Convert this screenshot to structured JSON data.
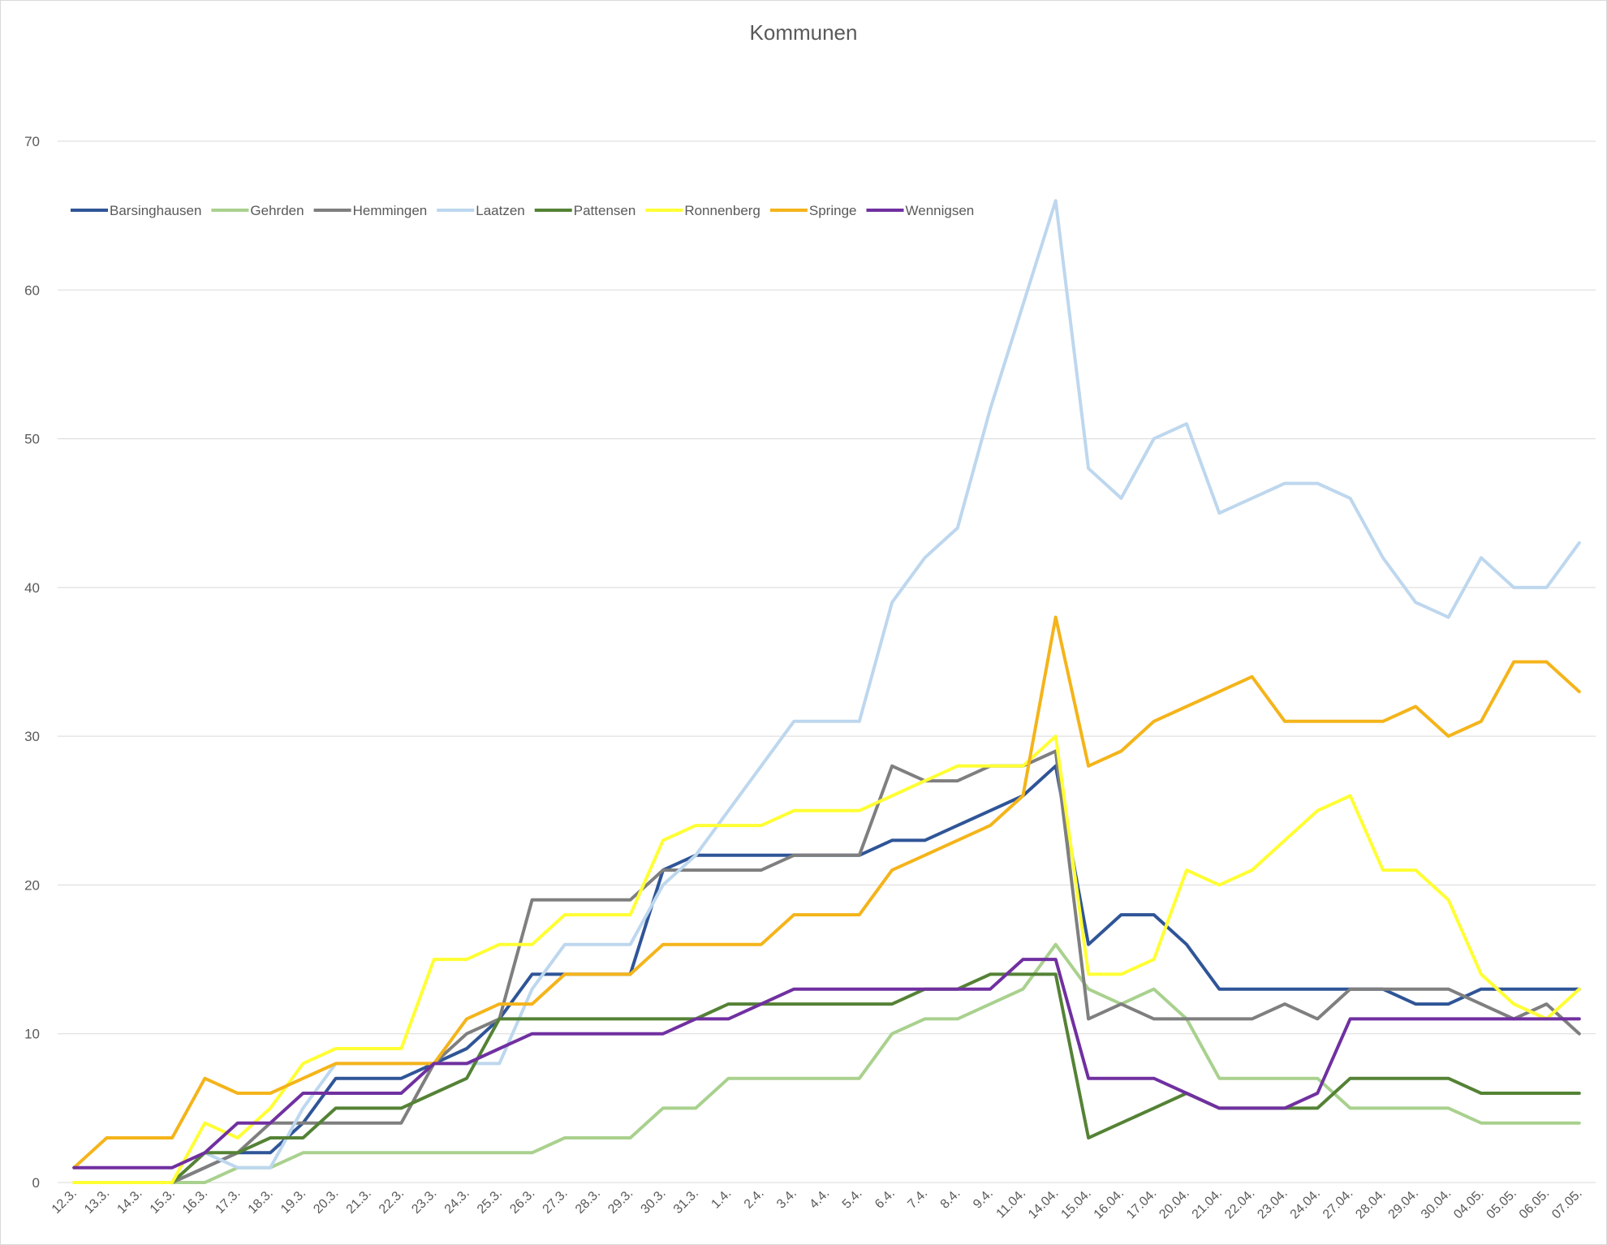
{
  "chart_data": {
    "type": "line",
    "title": "Kommunen",
    "xlabel": "",
    "ylabel": "",
    "ylim": [
      0,
      70
    ],
    "yticks": [
      0,
      10,
      20,
      30,
      40,
      50,
      60,
      70
    ],
    "grid": true,
    "legend_position": "top-left",
    "categories": [
      "12.3.",
      "13.3.",
      "14.3.",
      "15.3.",
      "16.3.",
      "17.3.",
      "18.3.",
      "19.3.",
      "20.3.",
      "21.3.",
      "22.3.",
      "23.3.",
      "24.3.",
      "25.3.",
      "26.3.",
      "27.3.",
      "28.3.",
      "29.3.",
      "30.3.",
      "31.3.",
      "1.4.",
      "2.4.",
      "3.4.",
      "4.4.",
      "5.4.",
      "6.4.",
      "7.4.",
      "8.4.",
      "9.4.",
      "11.04.",
      "14.04.",
      "15.04.",
      "16.04.",
      "17.04.",
      "20.04.",
      "21.04.",
      "22.04.",
      "23.04.",
      "24.04.",
      "27.04.",
      "28.04.",
      "29.04.",
      "30.04.",
      "04.05.",
      "05.05.",
      "06.05.",
      "07.05."
    ],
    "series": [
      {
        "name": "Barsinghausen",
        "color": "#2f5597",
        "values": [
          null,
          null,
          null,
          0,
          1,
          2,
          2,
          4,
          7,
          7,
          7,
          8,
          9,
          11,
          14,
          14,
          14,
          14,
          21,
          22,
          22,
          22,
          22,
          22,
          22,
          23,
          23,
          24,
          25,
          26,
          28,
          16,
          18,
          18,
          16,
          13,
          13,
          13,
          13,
          13,
          13,
          12,
          12,
          13,
          13,
          13,
          13
        ]
      },
      {
        "name": "Gehrden",
        "color": "#a9d18e",
        "values": [
          0,
          0,
          0,
          0,
          0,
          1,
          1,
          2,
          2,
          2,
          2,
          2,
          2,
          2,
          2,
          3,
          3,
          3,
          5,
          5,
          7,
          7,
          7,
          7,
          7,
          10,
          11,
          11,
          12,
          13,
          16,
          13,
          12,
          13,
          11,
          7,
          7,
          7,
          7,
          5,
          5,
          5,
          5,
          4,
          4,
          4,
          4
        ]
      },
      {
        "name": "Hemmingen",
        "color": "#7f7f7f",
        "values": [
          null,
          null,
          null,
          0,
          1,
          2,
          4,
          4,
          4,
          4,
          4,
          8,
          10,
          11,
          19,
          19,
          19,
          19,
          21,
          21,
          21,
          21,
          22,
          22,
          22,
          28,
          27,
          27,
          28,
          28,
          29,
          11,
          12,
          11,
          11,
          11,
          11,
          12,
          11,
          13,
          13,
          13,
          13,
          12,
          11,
          12,
          10
        ]
      },
      {
        "name": "Laatzen",
        "color": "#bdd7ee",
        "values": [
          null,
          null,
          null,
          0,
          2,
          1,
          1,
          5,
          8,
          8,
          8,
          8,
          8,
          8,
          13,
          16,
          16,
          16,
          20,
          22,
          25,
          28,
          31,
          31,
          31,
          39,
          42,
          44,
          52,
          59,
          66,
          48,
          46,
          50,
          51,
          45,
          46,
          47,
          47,
          46,
          42,
          39,
          38,
          42,
          40,
          40,
          43
        ]
      },
      {
        "name": "Pattensen",
        "color": "#548235",
        "values": [
          null,
          null,
          null,
          0,
          2,
          2,
          3,
          3,
          5,
          5,
          5,
          6,
          7,
          11,
          11,
          11,
          11,
          11,
          11,
          11,
          12,
          12,
          12,
          12,
          12,
          12,
          13,
          13,
          14,
          14,
          14,
          3,
          4,
          5,
          6,
          5,
          5,
          5,
          5,
          7,
          7,
          7,
          7,
          6,
          6,
          6,
          6
        ]
      },
      {
        "name": "Ronnenberg",
        "color": "#ffff33",
        "values": [
          0,
          0,
          0,
          0,
          4,
          3,
          5,
          8,
          9,
          9,
          9,
          15,
          15,
          16,
          16,
          18,
          18,
          18,
          23,
          24,
          24,
          24,
          25,
          25,
          25,
          26,
          27,
          28,
          28,
          28,
          30,
          14,
          14,
          15,
          21,
          20,
          21,
          23,
          25,
          26,
          21,
          21,
          19,
          14,
          12,
          11,
          13
        ]
      },
      {
        "name": "Springe",
        "color": "#f4b41a",
        "values": [
          1,
          3,
          3,
          3,
          7,
          6,
          6,
          7,
          8,
          8,
          8,
          8,
          11,
          12,
          12,
          14,
          14,
          14,
          16,
          16,
          16,
          16,
          18,
          18,
          18,
          21,
          22,
          23,
          24,
          26,
          38,
          28,
          29,
          31,
          32,
          33,
          34,
          31,
          31,
          31,
          31,
          32,
          30,
          31,
          35,
          35,
          33
        ]
      },
      {
        "name": "Wennigsen",
        "color": "#7030a0",
        "values": [
          1,
          1,
          1,
          1,
          2,
          4,
          4,
          6,
          6,
          6,
          6,
          8,
          8,
          9,
          10,
          10,
          10,
          10,
          10,
          11,
          11,
          12,
          13,
          13,
          13,
          13,
          13,
          13,
          13,
          15,
          15,
          7,
          7,
          7,
          6,
          5,
          5,
          5,
          6,
          11,
          11,
          11,
          11,
          11,
          11,
          11,
          11
        ]
      }
    ]
  }
}
